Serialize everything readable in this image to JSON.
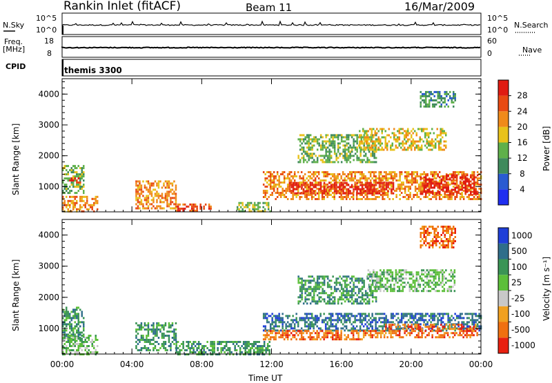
{
  "header": {
    "station": "Rankin Inlet (fitACF)",
    "beam": "Beam 11",
    "date": "16/Mar/2009"
  },
  "param_panels": {
    "nsky_label": "N.Sky",
    "nsky_ticks": [
      "10^5",
      "10^0"
    ],
    "nsearch_label": "N.Search",
    "nsearch_ticks": [
      "10^5",
      "10^0"
    ],
    "freq_label_1": "Freq.",
    "freq_label_2": "[MHz]",
    "freq_ticks": [
      "18",
      "8"
    ],
    "nave_label": "Nave",
    "nave_ticks": [
      "60",
      "0"
    ],
    "cpid_label": "CPID",
    "cpid_value": "themis 3300"
  },
  "chart_data": [
    {
      "type": "heatmap",
      "name": "power",
      "ylabel": "Slant Range [km]",
      "xlabel": "Time UT",
      "x_ticks": [
        "00:00",
        "04:00",
        "08:00",
        "12:00",
        "16:00",
        "20:00",
        "00:00"
      ],
      "xlim_hours": [
        0,
        24
      ],
      "y_ticks": [
        1000,
        2000,
        3000,
        4000
      ],
      "ylim": [
        180,
        4500
      ],
      "colorbar_label": "Power [dB]",
      "colorbar_ticks": [
        4,
        8,
        12,
        16,
        20,
        24,
        28
      ],
      "colorbar_colors": [
        "#1f2ef0",
        "#2a5bd1",
        "#3f8a5c",
        "#5fb04a",
        "#e8c21a",
        "#f08a1a",
        "#e84a12",
        "#e01b12"
      ],
      "colorbar_range": [
        0,
        32
      ],
      "regions": [
        {
          "t": [
            0.0,
            1.2
          ],
          "r": [
            800,
            1700
          ],
          "level": 12
        },
        {
          "t": [
            0.0,
            2.0
          ],
          "r": [
            200,
            700
          ],
          "level": 20
        },
        {
          "t": [
            0.3,
            1.0
          ],
          "r": [
            1100,
            1300
          ],
          "level": 28
        },
        {
          "t": [
            4.2,
            6.5
          ],
          "r": [
            300,
            1200
          ],
          "level": 20
        },
        {
          "t": [
            6.5,
            8.5
          ],
          "r": [
            200,
            450
          ],
          "level": 24
        },
        {
          "t": [
            10.0,
            11.9
          ],
          "r": [
            200,
            500
          ],
          "level": 12
        },
        {
          "t": [
            11.5,
            24.0
          ],
          "r": [
            600,
            1500
          ],
          "level": 20
        },
        {
          "t": [
            13.0,
            19.0
          ],
          "r": [
            800,
            1150
          ],
          "level": 28
        },
        {
          "t": [
            20.5,
            23.8
          ],
          "r": [
            750,
            1400
          ],
          "level": 28
        },
        {
          "t": [
            13.5,
            18.0
          ],
          "r": [
            1800,
            2700
          ],
          "level": 12
        },
        {
          "t": [
            17.0,
            22.0
          ],
          "r": [
            2200,
            2900
          ],
          "level": 16
        },
        {
          "t": [
            20.5,
            22.5
          ],
          "r": [
            3600,
            4100
          ],
          "level": 8
        }
      ]
    },
    {
      "type": "heatmap",
      "name": "velocity",
      "ylabel": "Slant Range [km]",
      "xlabel": "Time UT",
      "x_ticks": [
        "00:00",
        "04:00",
        "08:00",
        "12:00",
        "16:00",
        "20:00",
        "00:00"
      ],
      "xlim_hours": [
        0,
        24
      ],
      "y_ticks": [
        1000,
        2000,
        3000,
        4000
      ],
      "ylim": [
        180,
        4500
      ],
      "colorbar_label": "Velocity [m s⁻¹]",
      "colorbar_ticks": [
        "1000",
        "500",
        "100",
        "25",
        "-25",
        "-100",
        "-500",
        "-1000"
      ],
      "colorbar_colors": [
        "#1f3fd8",
        "#2f6e8a",
        "#3a9455",
        "#5cbf3a",
        "#c8c8c8",
        "#f0a020",
        "#f07010",
        "#e82010"
      ],
      "regions": [
        {
          "t": [
            0.0,
            1.2
          ],
          "r": [
            600,
            1700
          ],
          "level": 100
        },
        {
          "t": [
            0.0,
            2.0
          ],
          "r": [
            200,
            800
          ],
          "level": 25
        },
        {
          "t": [
            4.2,
            6.5
          ],
          "r": [
            300,
            1200
          ],
          "level": 100
        },
        {
          "t": [
            6.5,
            11.9
          ],
          "r": [
            200,
            600
          ],
          "level": 100
        },
        {
          "t": [
            11.5,
            24.0
          ],
          "r": [
            950,
            1500
          ],
          "level": 500
        },
        {
          "t": [
            11.5,
            18.5
          ],
          "r": [
            650,
            950
          ],
          "level": -500
        },
        {
          "t": [
            18.5,
            23.8
          ],
          "r": [
            700,
            1150
          ],
          "level": -500
        },
        {
          "t": [
            13.5,
            18.0
          ],
          "r": [
            1800,
            2700
          ],
          "level": 100
        },
        {
          "t": [
            17.5,
            22.5
          ],
          "r": [
            2200,
            2900
          ],
          "level": 25
        },
        {
          "t": [
            20.5,
            22.5
          ],
          "r": [
            3600,
            4300
          ],
          "level": -500
        }
      ]
    }
  ]
}
